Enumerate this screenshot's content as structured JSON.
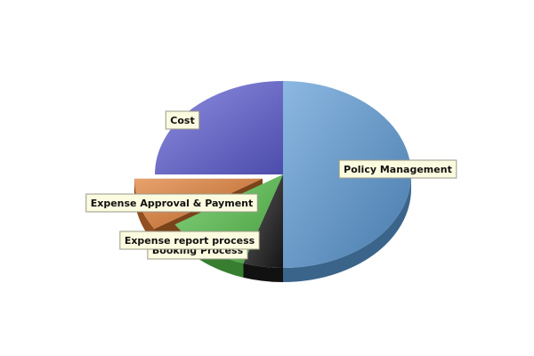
{
  "chart_data": {
    "type": "pie",
    "style": "3d",
    "title": "",
    "slices": [
      {
        "label": "Policy Management",
        "value": 50,
        "color": "#5b9ad6"
      },
      {
        "label": "Booking Process",
        "value": 5,
        "color": "#1a1a1a"
      },
      {
        "label": "Expense report process",
        "value": 11,
        "color": "#55c24a"
      },
      {
        "label": "Expense Approval & Payment",
        "value": 9,
        "color": "#e07a30",
        "exploded": true
      },
      {
        "label": "Cost",
        "value": 25,
        "color": "#5f5fd6"
      }
    ]
  }
}
